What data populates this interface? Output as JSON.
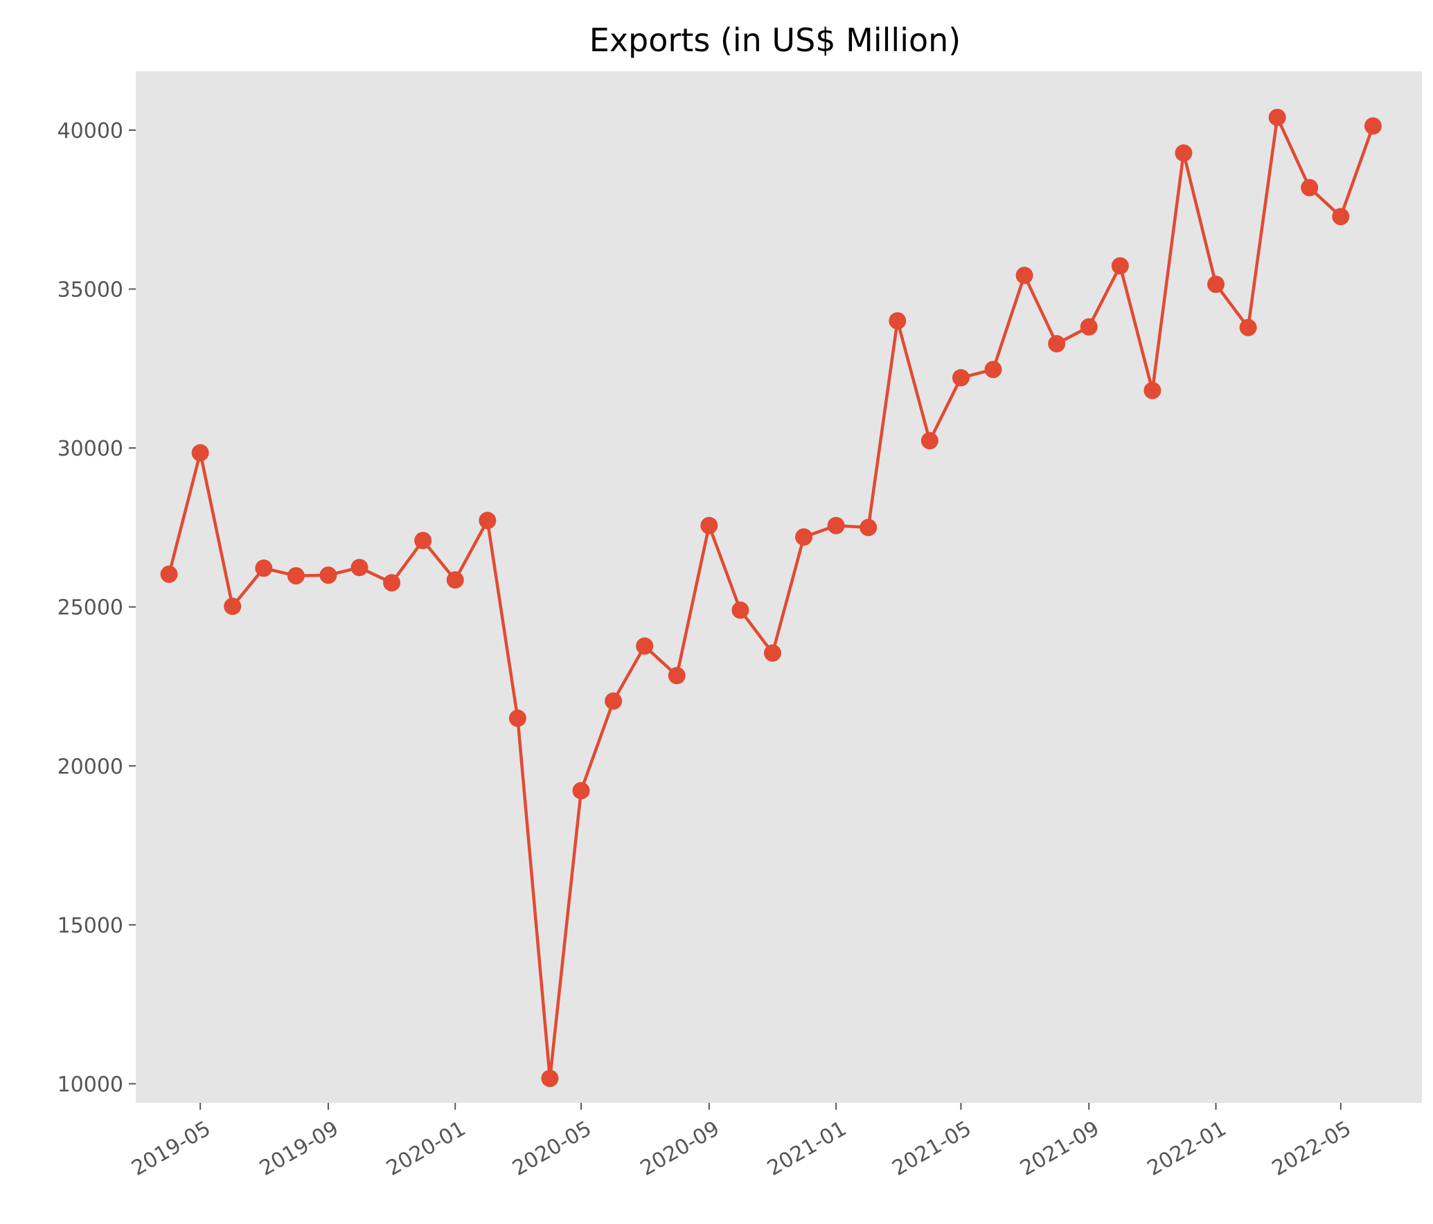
{
  "chart_data": {
    "type": "line",
    "title": "Exports (in US$ Million)",
    "xlabel": "",
    "ylabel": "",
    "x_type": "date",
    "xlim": [
      "2019-02-28",
      "2022-07-18"
    ],
    "ylim": [
      9400,
      41850
    ],
    "x_ticks": [
      "2019-05-01",
      "2019-09-01",
      "2020-01-01",
      "2020-05-01",
      "2020-09-01",
      "2021-01-01",
      "2021-05-01",
      "2021-09-01",
      "2022-01-01",
      "2022-05-01"
    ],
    "x_tick_labels": [
      "2019-05",
      "2019-09",
      "2020-01",
      "2020-05",
      "2020-09",
      "2021-01",
      "2021-05",
      "2021-09",
      "2022-01",
      "2022-05"
    ],
    "y_ticks": [
      10000,
      15000,
      20000,
      25000,
      30000,
      35000,
      40000
    ],
    "y_tick_labels": [
      "10000",
      "15000",
      "20000",
      "25000",
      "30000",
      "35000",
      "40000"
    ],
    "grid": false,
    "legend": "none",
    "colors": {
      "line": "#E24A33",
      "plot_background": "#E5E5E5",
      "tick_label": "#555555",
      "title": "#000000"
    },
    "series": [
      {
        "marker": "circle",
        "x": [
          "2019-04-01",
          "2019-05-01",
          "2019-06-01",
          "2019-07-01",
          "2019-08-01",
          "2019-09-01",
          "2019-10-01",
          "2019-11-01",
          "2019-12-01",
          "2020-01-01",
          "2020-02-01",
          "2020-03-01",
          "2020-04-01",
          "2020-05-01",
          "2020-06-01",
          "2020-07-01",
          "2020-08-01",
          "2020-09-01",
          "2020-10-01",
          "2020-11-01",
          "2020-12-01",
          "2021-01-01",
          "2021-02-01",
          "2021-03-01",
          "2021-04-01",
          "2021-05-01",
          "2021-06-01",
          "2021-07-01",
          "2021-08-01",
          "2021-09-01",
          "2021-10-01",
          "2021-11-01",
          "2021-12-01",
          "2022-01-01",
          "2022-02-01",
          "2022-03-01",
          "2022-04-01",
          "2022-05-01",
          "2022-06-01"
        ],
        "values": [
          26030,
          29850,
          25020,
          26220,
          25980,
          26000,
          26240,
          25760,
          27090,
          25850,
          27720,
          21500,
          10170,
          19220,
          22040,
          23770,
          22840,
          27560,
          24900,
          23550,
          27200,
          27560,
          27500,
          34000,
          30230,
          32210,
          32470,
          35430,
          33280,
          33810,
          35730,
          31810,
          39280,
          35150,
          33790,
          40400,
          38190,
          37280,
          40130
        ]
      }
    ]
  }
}
